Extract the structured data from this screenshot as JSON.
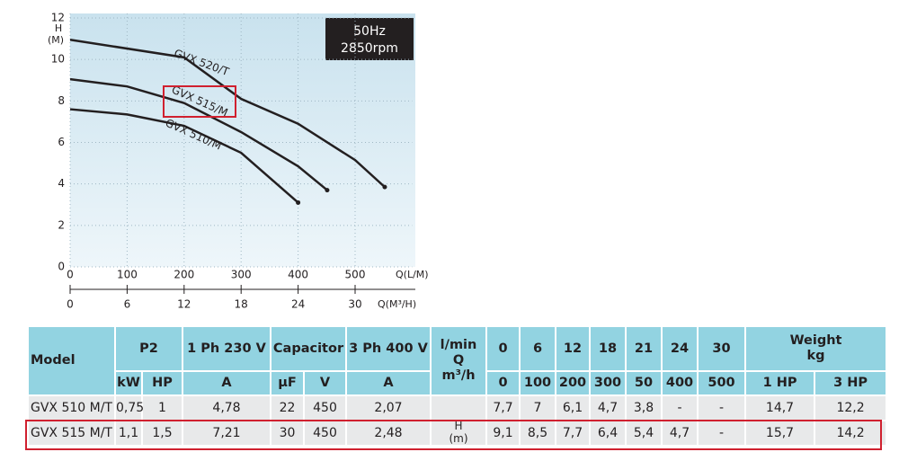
{
  "chart_data": {
    "type": "line",
    "y_label": [
      "H",
      "(M)"
    ],
    "x_label": "Q(L/M)",
    "x2_label": "Q(M³/H)",
    "annotations": [
      "50Hz",
      "2850rpm"
    ],
    "xlim": [
      0,
      600
    ],
    "xticks": [
      0,
      100,
      200,
      300,
      400,
      500
    ],
    "x2lim": [
      0,
      36
    ],
    "x2ticks": [
      0,
      6,
      12,
      18,
      24,
      30
    ],
    "ylim": [
      0,
      12
    ],
    "yticks": [
      0,
      2,
      4,
      6,
      8,
      10,
      12
    ],
    "grid": true,
    "highlight": "GVX 515/M",
    "series": [
      {
        "name": "GVX 520/T",
        "color": "#231f20",
        "x": [
          0,
          200,
          300,
          400,
          500,
          552
        ],
        "values": [
          10.95,
          10.1,
          8.1,
          6.9,
          5.15,
          3.85
        ]
      },
      {
        "name": "GVX 515/M",
        "color": "#231f20",
        "x": [
          0,
          100,
          200,
          300,
          400,
          451
        ],
        "values": [
          9.05,
          8.7,
          7.9,
          6.5,
          4.85,
          3.7
        ]
      },
      {
        "name": "GVX 510/M",
        "color": "#231f20",
        "x": [
          0,
          100,
          200,
          300,
          400
        ],
        "values": [
          7.6,
          7.35,
          6.8,
          5.5,
          3.1
        ]
      }
    ]
  },
  "table": {
    "header": [
      [
        "Model",
        "P2",
        "1 Ph 230 V",
        "Capacitor",
        "3 Ph 400 V",
        "l/min\nQ\nm³/h",
        "0",
        "6",
        "12",
        "18",
        "21",
        "24",
        "30",
        "Weight\nkg"
      ],
      [
        "kW",
        "HP",
        "A",
        "µF",
        "V",
        "A",
        "0",
        "100",
        "200",
        "300",
        "50",
        "400",
        "500",
        "1 HP",
        "3 HP"
      ]
    ],
    "q_unit": "H\n(m)",
    "rows": [
      [
        "GVX 510 M/T",
        "0,75",
        "1",
        "4,78",
        "22",
        "450",
        "2,07",
        "7,7",
        "7",
        "6,1",
        "4,7",
        "3,8",
        "-",
        "-",
        "14,7",
        "12,2"
      ],
      [
        "GVX 515 M/T",
        "1,1",
        "1,5",
        "7,21",
        "30",
        "450",
        "2,48",
        "9,1",
        "8,5",
        "7,7",
        "6,4",
        "5,4",
        "4,7",
        "-",
        "15,7",
        "14,2"
      ]
    ],
    "highlight_row": "GVX 515 M/T"
  }
}
